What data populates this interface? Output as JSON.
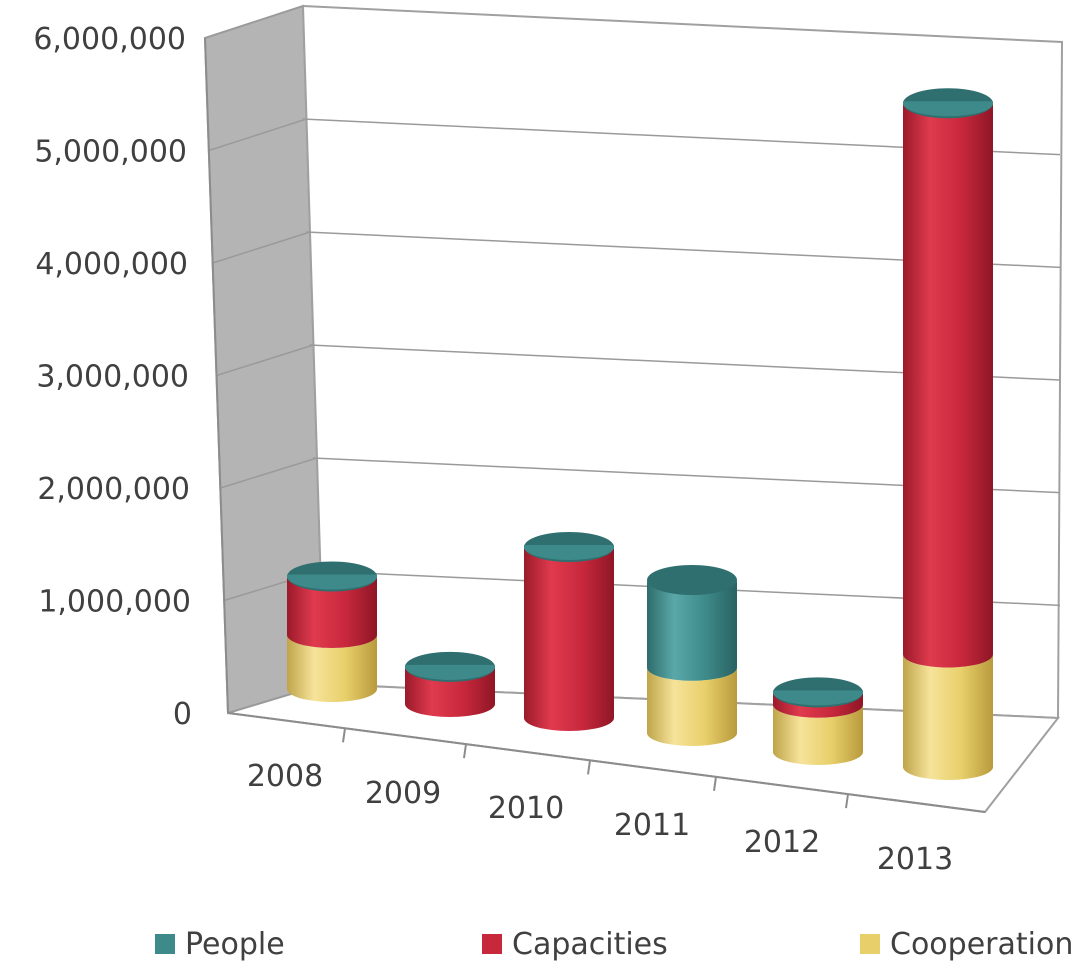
{
  "chart_data": {
    "type": "bar",
    "stacked": true,
    "style": "3d-cylinder",
    "categories": [
      "2008",
      "2009",
      "2010",
      "2011",
      "2012",
      "2013"
    ],
    "series": [
      {
        "name": "Cooperation",
        "color": "#e8cf6a",
        "values": [
          480000,
          0,
          0,
          580000,
          420000,
          1000000
        ]
      },
      {
        "name": "Capacities",
        "color": "#c8283c",
        "values": [
          520000,
          330000,
          1520000,
          0,
          110000,
          4900000
        ]
      },
      {
        "name": "People",
        "color": "#3e8a8a",
        "values": [
          0,
          0,
          0,
          780000,
          0,
          0
        ]
      }
    ],
    "yticks": [
      "0",
      "1,000,000",
      "2,000,000",
      "3,000,000",
      "4,000,000",
      "5,000,000",
      "6,000,000"
    ],
    "ylim": [
      0,
      6000000
    ],
    "grid": true,
    "legend_position": "bottom"
  }
}
